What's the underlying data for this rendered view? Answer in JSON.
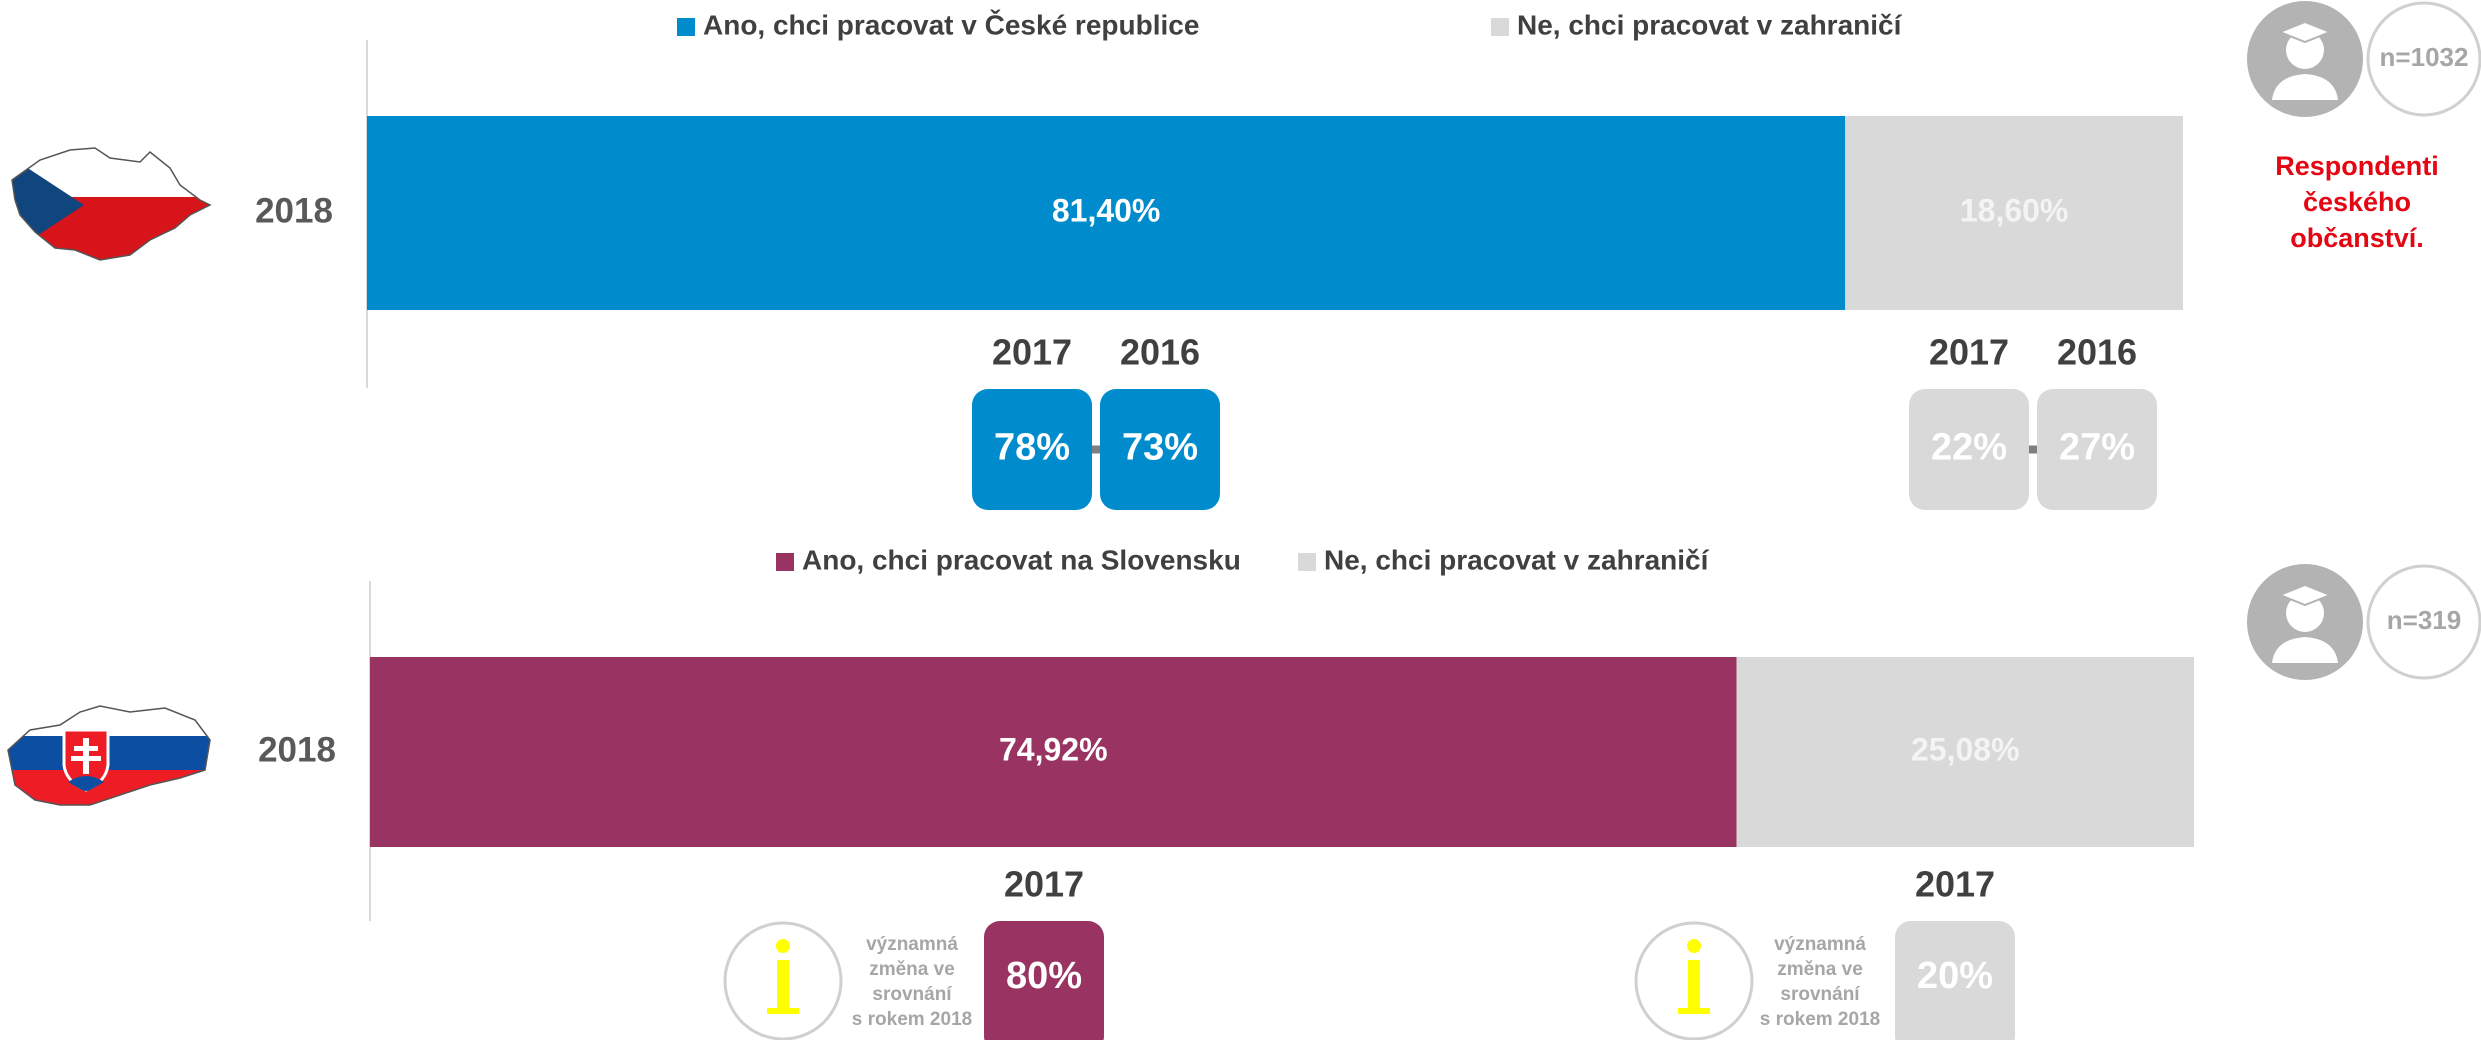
{
  "chart_data": [
    {
      "type": "bar",
      "orientation": "horizontal",
      "stacked": true,
      "categories": [
        "2018"
      ],
      "series": [
        {
          "name": "Ano, chci pracovat v České republice",
          "color": "#008ccc",
          "values": [
            81.4
          ],
          "value_labels": [
            "81,40%"
          ]
        },
        {
          "name": "Ne, chci pracovat v zahraničí",
          "color": "#d9d9d9",
          "values": [
            18.6
          ],
          "value_labels": [
            "18,60%"
          ]
        }
      ],
      "xlim": [
        0,
        100
      ],
      "sample": "n=1032",
      "note": [
        "Respondenti",
        "českého",
        "občanství."
      ],
      "comparison": {
        "years": [
          "2017",
          "2016"
        ],
        "series": [
          {
            "values": [
              78,
              73
            ],
            "value_labels": [
              "78%",
              "73%"
            ]
          },
          {
            "values": [
              22,
              27
            ],
            "value_labels": [
              "22%",
              "27%"
            ]
          }
        ]
      }
    },
    {
      "type": "bar",
      "orientation": "horizontal",
      "stacked": true,
      "categories": [
        "2018"
      ],
      "series": [
        {
          "name": "Ano, chci pracovat na Slovensku",
          "color": "#983362",
          "values": [
            74.92
          ],
          "value_labels": [
            "74,92%"
          ]
        },
        {
          "name": "Ne, chci pracovat v zahraničí",
          "color": "#d9d9d9",
          "values": [
            25.08
          ],
          "value_labels": [
            "25,08%"
          ]
        }
      ],
      "xlim": [
        0,
        100
      ],
      "sample": "n=319",
      "info": [
        "významná",
        "změna ve",
        "srovnání",
        "s rokem 2018"
      ],
      "comparison": {
        "years": [
          "2017"
        ],
        "series": [
          {
            "values": [
              80
            ],
            "value_labels": [
              "80%"
            ]
          },
          {
            "values": [
              20
            ],
            "value_labels": [
              "20%"
            ]
          }
        ]
      }
    }
  ]
}
